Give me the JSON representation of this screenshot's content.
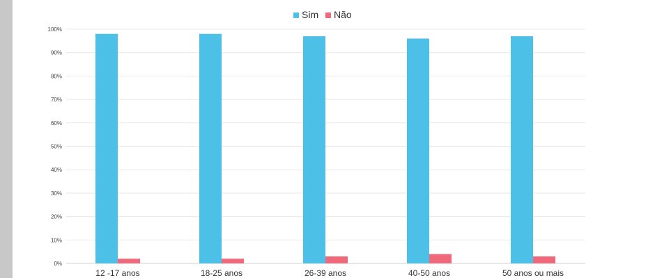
{
  "chart_data": {
    "type": "bar",
    "categories": [
      "12 -17 anos",
      "18-25 anos",
      "26-39 anos",
      "40-50 anos",
      "50 anos ou mais"
    ],
    "series": [
      {
        "name": "Sim",
        "values": [
          98,
          98,
          97,
          96,
          97
        ],
        "color": "#4dc0e8"
      },
      {
        "name": "Não",
        "values": [
          2,
          2,
          3,
          4,
          3
        ],
        "color": "#f0697a"
      }
    ],
    "yticks": [
      "0%",
      "10%",
      "20%",
      "30%",
      "40%",
      "50%",
      "60%",
      "70%",
      "80%",
      "90%",
      "100%"
    ],
    "ylim": [
      0,
      100
    ],
    "grid": true,
    "legend_position": "top-center"
  },
  "colors": {
    "grid": "#e8e8e8",
    "axis": "#d0d0d0",
    "side_strip": "#c8c8c8"
  }
}
